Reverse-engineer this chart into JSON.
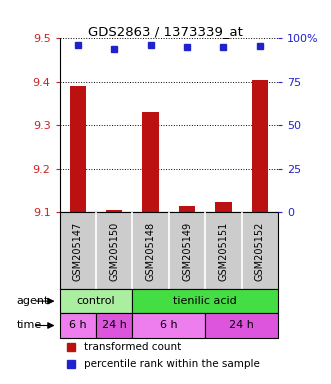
{
  "title": "GDS2863 / 1373339_at",
  "categories": [
    "GSM205147",
    "GSM205150",
    "GSM205148",
    "GSM205149",
    "GSM205151",
    "GSM205152"
  ],
  "bar_values": [
    9.39,
    9.105,
    9.33,
    9.115,
    9.125,
    9.405
  ],
  "bar_bottom": 9.1,
  "percentile_values": [
    96,
    94,
    96,
    95,
    95,
    95.5
  ],
  "ylim_left": [
    9.1,
    9.5
  ],
  "yticks_left": [
    9.1,
    9.2,
    9.3,
    9.4,
    9.5
  ],
  "yticks_right": [
    0,
    25,
    50,
    75,
    100
  ],
  "bar_color": "#BB1111",
  "dot_color": "#2222CC",
  "agent_labels": [
    {
      "text": "control",
      "start": 0,
      "end": 2,
      "color": "#AAEEA0"
    },
    {
      "text": "tienilic acid",
      "start": 2,
      "end": 6,
      "color": "#44DD44"
    }
  ],
  "time_labels": [
    {
      "text": "6 h",
      "start": 0,
      "end": 1,
      "color": "#EE7EEE"
    },
    {
      "text": "24 h",
      "start": 1,
      "end": 2,
      "color": "#DD55DD"
    },
    {
      "text": "6 h",
      "start": 2,
      "end": 4,
      "color": "#EE7EEE"
    },
    {
      "text": "24 h",
      "start": 4,
      "end": 6,
      "color": "#DD55DD"
    }
  ],
  "legend_bar_label": "transformed count",
  "legend_dot_label": "percentile rank within the sample",
  "label_agent": "agent",
  "label_time": "time",
  "tick_color_left": "#CC2222",
  "tick_color_right": "#2222CC",
  "bg_color_plot": "#FFFFFF",
  "bg_color_gsm": "#CCCCCC",
  "spine_color": "#000000"
}
